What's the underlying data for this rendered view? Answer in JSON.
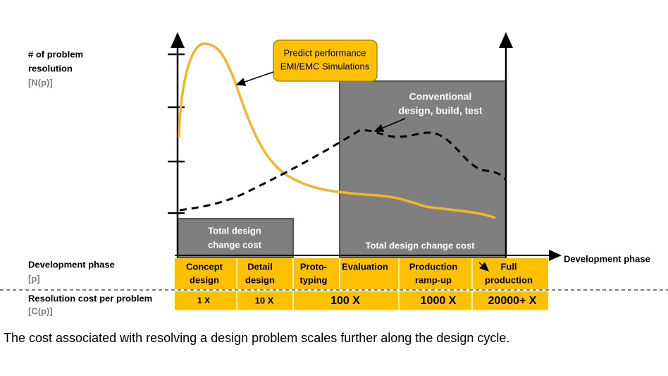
{
  "y_axis": {
    "label_lines": [
      "# of problem",
      "resolution"
    ],
    "symbol": "[N(p)]"
  },
  "callout": {
    "lines": [
      "Predict performance",
      "EMI/EMC Simulations"
    ]
  },
  "conventional": {
    "lines": [
      "Conventional",
      "design, build, test"
    ]
  },
  "small_box": {
    "lines": [
      "Total design",
      "change cost"
    ]
  },
  "big_box": {
    "label": "Total design change cost"
  },
  "x_axis": {
    "label": "Development phase"
  },
  "rows": {
    "phase": {
      "label": "Development phase",
      "symbol": "[p]"
    },
    "cost": {
      "label": "Resolution cost per problem",
      "symbol": "[C(p)]"
    }
  },
  "phases": [
    [
      "Concept",
      "design"
    ],
    [
      "Detail",
      "design"
    ],
    [
      "Proto-",
      "typing"
    ],
    [
      "Evaluation"
    ],
    [
      "Production",
      "ramp-up"
    ],
    [
      "Full",
      "production"
    ]
  ],
  "costs": [
    "1 X",
    "10 X",
    "100 X",
    "1000 X",
    "20000+ X"
  ],
  "caption": "The cost associated with resolving a design problem scales further along the design cycle."
}
